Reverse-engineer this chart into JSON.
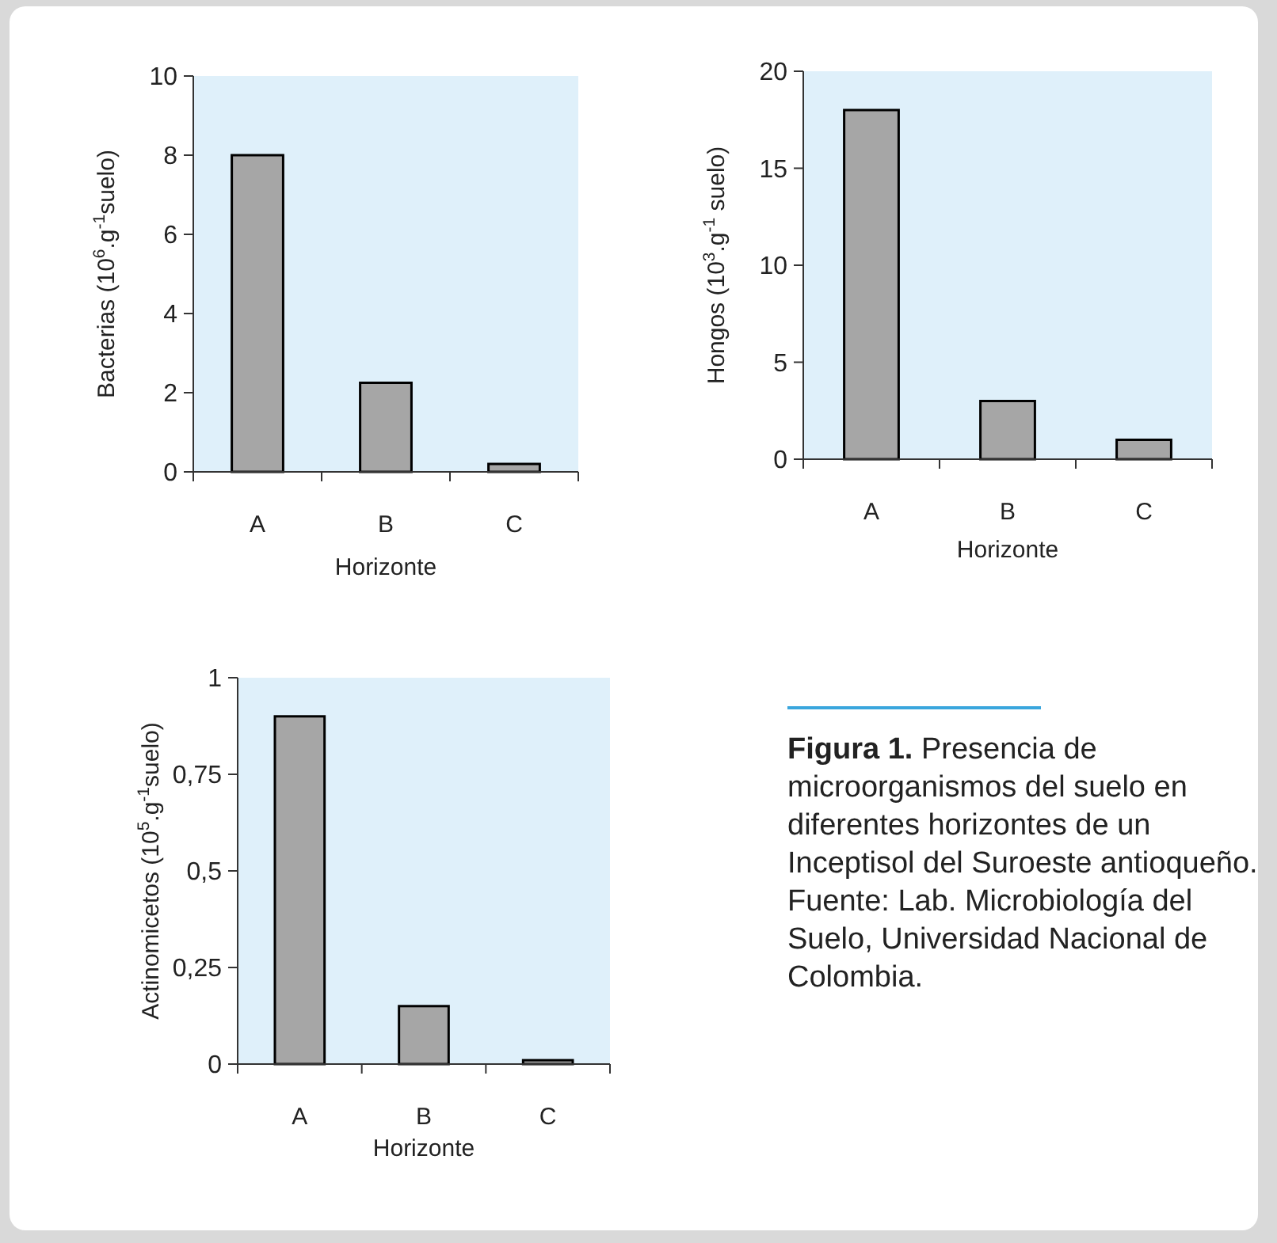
{
  "chart_data": [
    {
      "type": "bar",
      "ylabel": "Bacterias  (10$^{6}$.g$^{-1}$suelo)",
      "xlabel": "Horizonte",
      "categories": [
        "A",
        "B",
        "C"
      ],
      "values": [
        8,
        2.25,
        0.2
      ],
      "color": "#a6a6a6",
      "ylim": [
        0,
        10
      ],
      "yticks": [
        0,
        2,
        4,
        6,
        8,
        10
      ]
    },
    {
      "type": "bar",
      "ylabel": "Hongos  (10$^{3}$.g$^{-1}$ suelo)",
      "xlabel": "Horizonte",
      "categories": [
        "A",
        "B",
        "C"
      ],
      "values": [
        18,
        3,
        1
      ],
      "color": "#a6a6a6",
      "ylim": [
        0,
        20
      ],
      "yticks": [
        0,
        5,
        10,
        15,
        20
      ]
    },
    {
      "type": "bar",
      "ylabel": "Actinomicetos  (10$^{5}$.g$^{-1}$suelo)",
      "xlabel": "Horizonte",
      "categories": [
        "A",
        "B",
        "C"
      ],
      "values": [
        0.9,
        0.15,
        0.01
      ],
      "color": "#a6a6a6",
      "ylim": [
        0,
        1
      ],
      "yticks": [
        0,
        {
          "value": 0.25,
          "label": "0,25"
        },
        {
          "value": 0.5,
          "label": "0,5"
        },
        {
          "value": 0.75,
          "label": "0,75"
        },
        1
      ]
    },
    {
      "type": "other",
      "annotations": [
        "Figura 1.",
        "Presencia de microorganismos del suelo en diferentes horizontes de un Inceptisol del Suroeste antioqueño. Fuente: Lab. Microbiología del Suelo, Universidad Nacional de Colombia."
      ]
    }
  ]
}
